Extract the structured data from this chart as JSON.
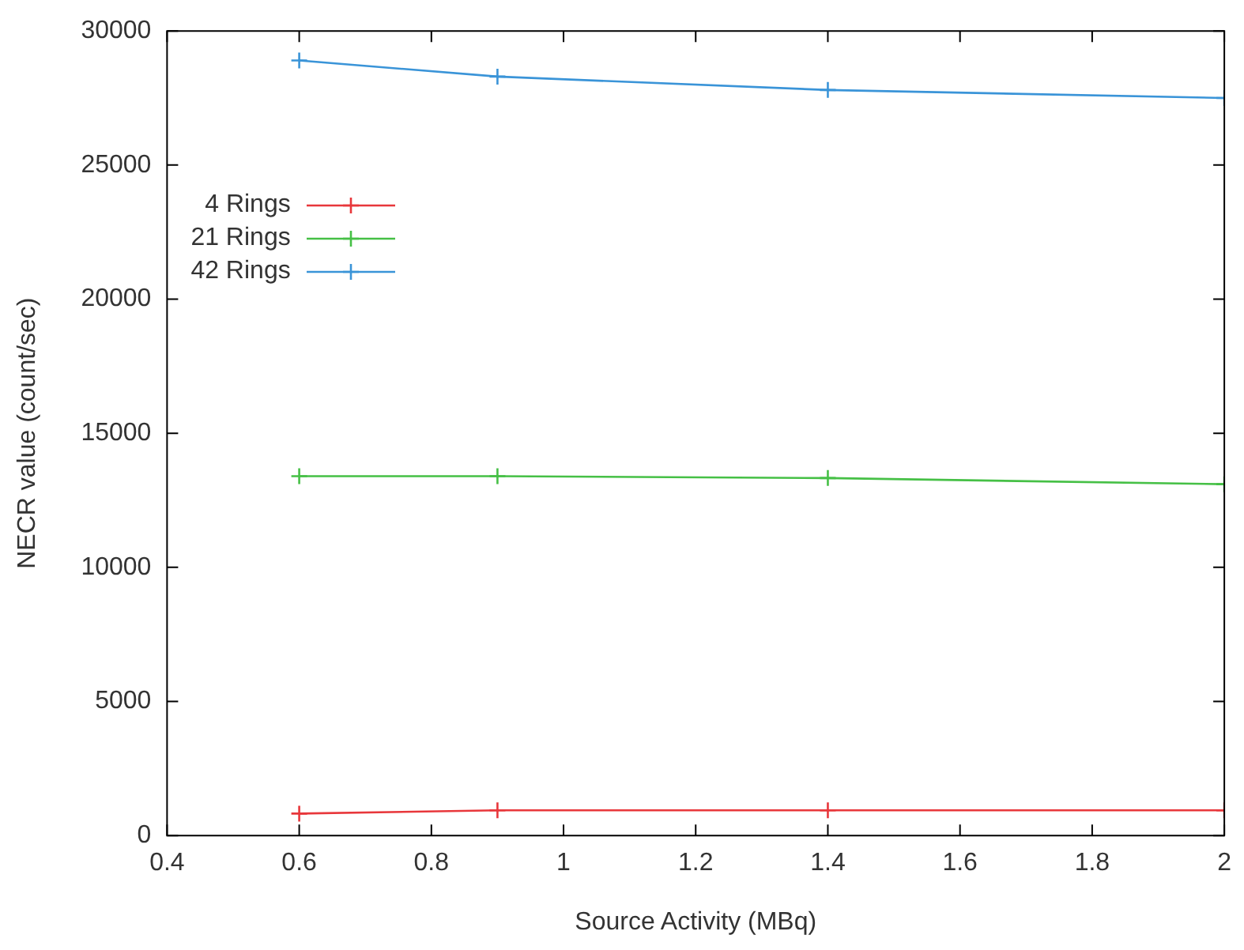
{
  "chart_data": {
    "type": "line",
    "xlabel": "Source Activity (MBq)",
    "ylabel": "NECR value (count/sec)",
    "x": [
      0.6,
      0.9,
      1.4,
      2
    ],
    "series": [
      {
        "name": "4 Rings",
        "color": "#e8373b",
        "marker": "cross",
        "values": [
          820,
          940,
          940,
          940
        ]
      },
      {
        "name": "21 Rings",
        "color": "#46c046",
        "marker": "cross",
        "values": [
          13400,
          13400,
          13330,
          13100
        ]
      },
      {
        "name": "42 Rings",
        "color": "#3a94d8",
        "marker": "cross",
        "values": [
          28900,
          28300,
          27800,
          27500
        ]
      }
    ],
    "xlim": [
      0.4,
      2
    ],
    "xticks": [
      0.4,
      0.6,
      0.8,
      1,
      1.2,
      1.4,
      1.6,
      1.8,
      2
    ],
    "ylim": [
      0,
      30000
    ],
    "yticks": [
      0,
      5000,
      10000,
      15000,
      20000,
      25000,
      30000
    ],
    "grid": false,
    "legend": "top left"
  }
}
